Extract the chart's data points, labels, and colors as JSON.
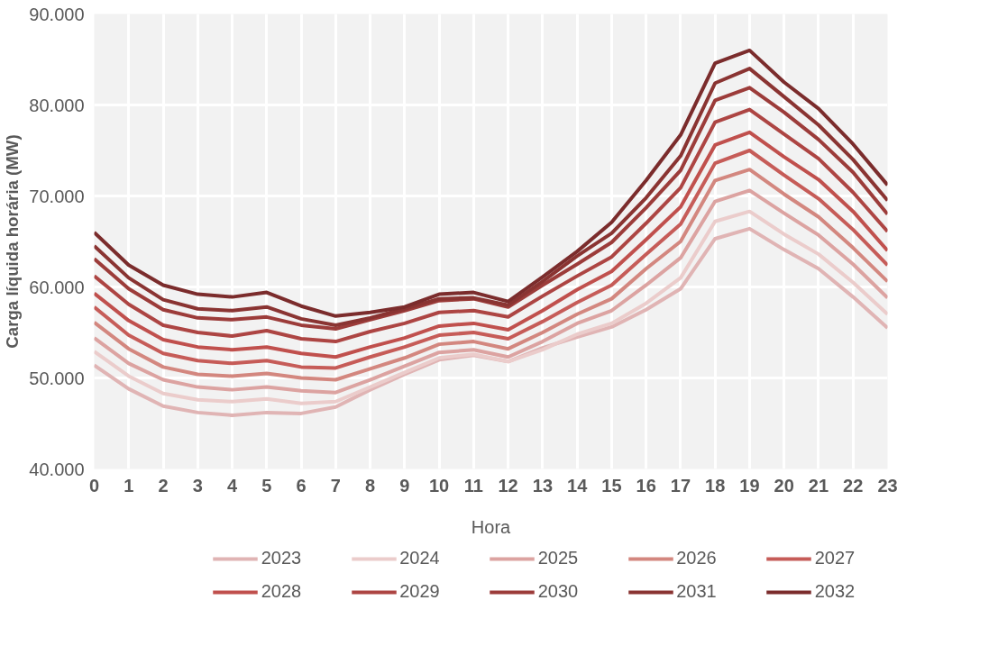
{
  "chart_data": {
    "type": "line",
    "xlabel": "Hora",
    "ylabel": "Carga líquida horária (MW)",
    "x": [
      0,
      1,
      2,
      3,
      4,
      5,
      6,
      7,
      8,
      9,
      10,
      11,
      12,
      13,
      14,
      15,
      16,
      17,
      18,
      19,
      20,
      21,
      22,
      23
    ],
    "xlim": [
      0,
      23
    ],
    "xticks": [
      0,
      1,
      2,
      3,
      4,
      5,
      6,
      7,
      8,
      9,
      10,
      11,
      12,
      13,
      14,
      15,
      16,
      17,
      18,
      19,
      20,
      21,
      22,
      23
    ],
    "ylim": [
      40000,
      90000
    ],
    "yticks": [
      {
        "value": 40000,
        "label": "40.000"
      },
      {
        "value": 50000,
        "label": "50.000"
      },
      {
        "value": 60000,
        "label": "60.000"
      },
      {
        "value": 70000,
        "label": "70.000"
      },
      {
        "value": 80000,
        "label": "80.000"
      },
      {
        "value": 90000,
        "label": "90.000"
      }
    ],
    "grid": true,
    "legend": "bottom",
    "marker": "none",
    "line_style": "solid",
    "series": [
      {
        "name": "2023",
        "color": "#e0b4b4",
        "values": [
          51400,
          48800,
          46900,
          46200,
          45900,
          46200,
          46100,
          46800,
          48700,
          50400,
          52000,
          52500,
          51800,
          53300,
          54500,
          55600,
          57500,
          59800,
          65300,
          66400,
          64100,
          62000,
          58900,
          55500
        ]
      },
      {
        "name": "2024",
        "color": "#ebcccb",
        "values": [
          52900,
          50200,
          48300,
          47600,
          47400,
          47700,
          47200,
          47400,
          49000,
          50600,
          52200,
          52600,
          51800,
          53100,
          54800,
          56000,
          58200,
          61000,
          67200,
          68300,
          65800,
          63600,
          60500,
          57000
        ]
      },
      {
        "name": "2025",
        "color": "#dca3a1",
        "values": [
          54400,
          51600,
          49800,
          49000,
          48700,
          49000,
          48600,
          48400,
          49800,
          51300,
          52800,
          53100,
          52300,
          54000,
          56000,
          57400,
          60200,
          63200,
          69400,
          70600,
          68100,
          65700,
          62500,
          58800
        ]
      },
      {
        "name": "2026",
        "color": "#d3877f",
        "values": [
          56100,
          53200,
          51200,
          50400,
          50200,
          50500,
          50000,
          49800,
          51000,
          52200,
          53700,
          54000,
          53200,
          55000,
          57000,
          58700,
          62000,
          65000,
          71700,
          72900,
          70200,
          67700,
          64300,
          60600
        ]
      },
      {
        "name": "2027",
        "color": "#c65c58",
        "values": [
          57800,
          54700,
          52700,
          51900,
          51600,
          51900,
          51200,
          51100,
          52300,
          53400,
          54700,
          55000,
          54300,
          56200,
          58300,
          60200,
          63600,
          66900,
          73600,
          75000,
          72300,
          69700,
          66300,
          62400
        ]
      },
      {
        "name": "2028",
        "color": "#c0504d",
        "values": [
          59300,
          56300,
          54200,
          53400,
          53100,
          53400,
          52700,
          52300,
          53400,
          54400,
          55700,
          56000,
          55300,
          57400,
          59700,
          61700,
          65200,
          68800,
          75600,
          77000,
          74300,
          71800,
          68300,
          64000
        ]
      },
      {
        "name": "2029",
        "color": "#ad4543",
        "values": [
          61200,
          58100,
          55800,
          55000,
          54600,
          55200,
          54300,
          54000,
          55100,
          56000,
          57200,
          57400,
          56700,
          59000,
          61200,
          63300,
          67000,
          70900,
          78100,
          79500,
          76800,
          74100,
          70400,
          66100
        ]
      },
      {
        "name": "2030",
        "color": "#9c3c3a",
        "values": [
          63100,
          59800,
          57500,
          56600,
          56400,
          56700,
          55800,
          55400,
          56400,
          57400,
          58500,
          58700,
          57800,
          60200,
          62500,
          64900,
          68700,
          72800,
          80500,
          81900,
          79200,
          76200,
          72600,
          68000
        ]
      },
      {
        "name": "2031",
        "color": "#8a3432",
        "values": [
          64500,
          61000,
          58600,
          57600,
          57400,
          57800,
          56500,
          55800,
          56600,
          57600,
          58700,
          58800,
          58000,
          60600,
          63400,
          65900,
          69800,
          74400,
          82400,
          84000,
          80900,
          77800,
          74000,
          69500
        ]
      },
      {
        "name": "2032",
        "color": "#7b2c2c",
        "values": [
          66000,
          62400,
          60200,
          59200,
          58900,
          59400,
          57900,
          56800,
          57200,
          57800,
          59200,
          59400,
          58400,
          61100,
          63900,
          67100,
          71700,
          76700,
          84600,
          86000,
          82500,
          79600,
          75700,
          71200
        ]
      }
    ]
  }
}
